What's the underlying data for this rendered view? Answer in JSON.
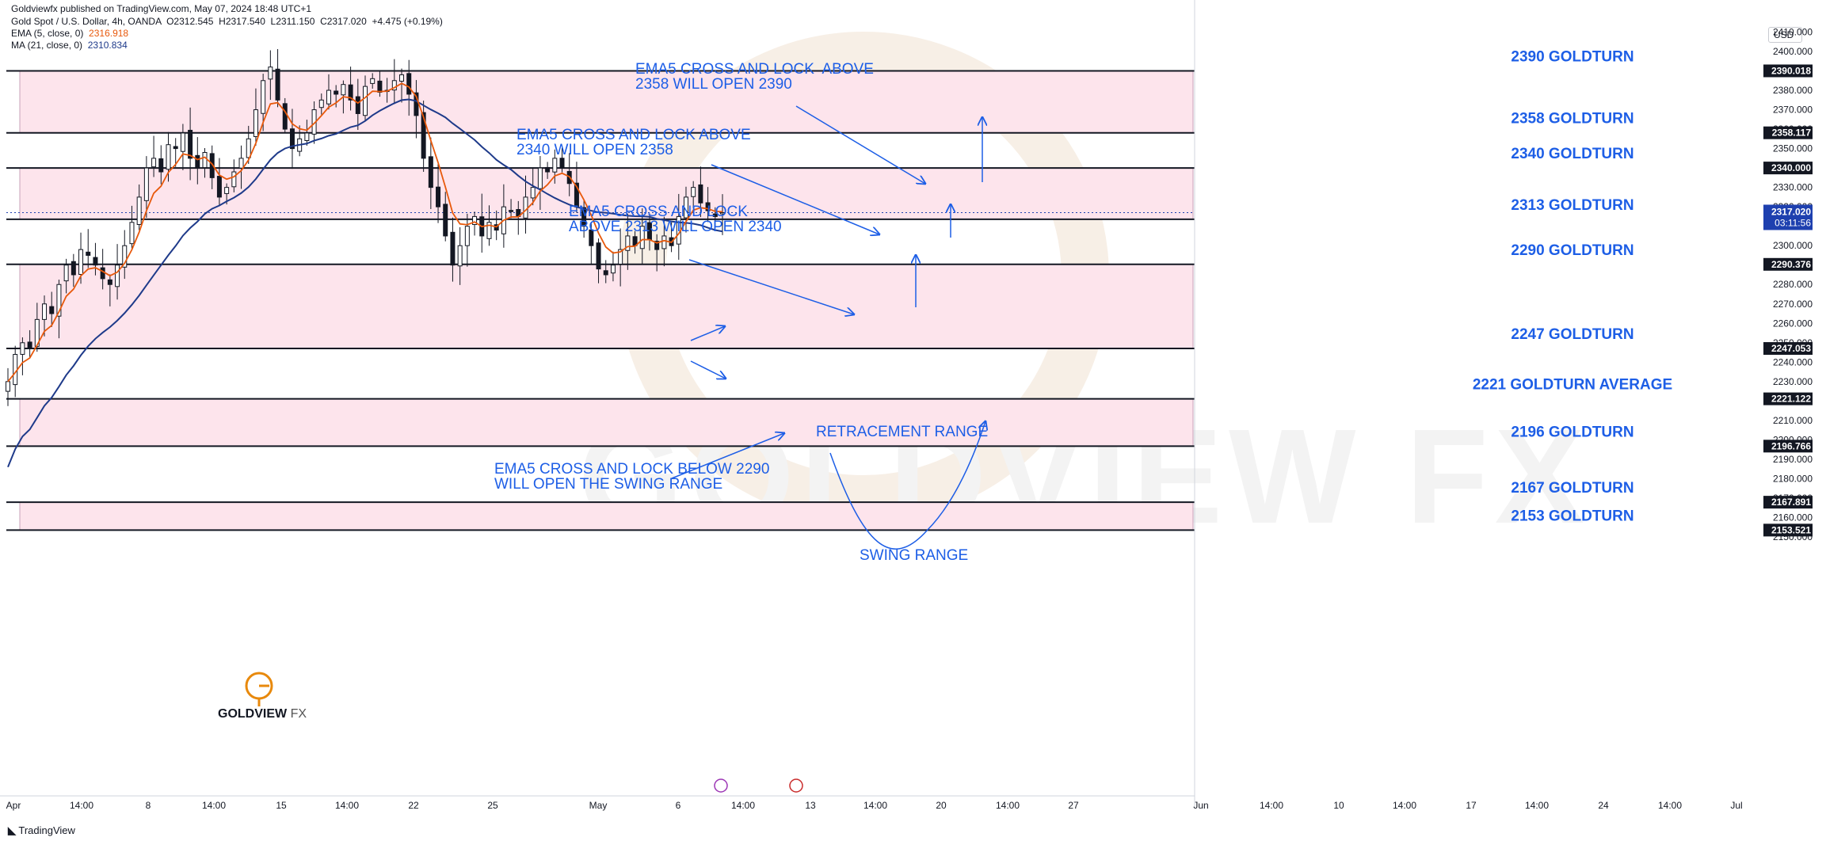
{
  "header": {
    "publisher": "Goldviewfx published on TradingView.com, May 07, 2024 18:48 UTC+1",
    "symbol": "Gold Spot / U.S. Dollar, 4h, OANDA",
    "ohlc": {
      "o": "O2312.545",
      "h": "H2317.540",
      "l": "L2311.150",
      "c": "C2317.020",
      "chg": "+4.475 (+0.19%)"
    },
    "ema_label": "EMA (5, close, 0)",
    "ema_value": "2316.918",
    "ma_label": "MA (21, close, 0)",
    "ma_value": "2310.834"
  },
  "currency_button": "USD",
  "footer": {
    "logo": "TradingView"
  },
  "watermark": "GOLDVIEW FX",
  "logo": {
    "name": "GOLDVIEW",
    "suffix": "FX"
  },
  "annotations": {
    "a2390": "EMA5 CROSS AND LOCK  ABOVE\n2358 WILL OPEN 2390",
    "a2358": "EMA5 CROSS AND LOCK ABOVE\n2340 WILL OPEN 2358",
    "a2340": "EMA5 CROSS AND LOCK\nABOVE 2313 WILL OPEN 2340",
    "a2290": "EMA5 CROSS AND LOCK BELOW 2290\nWILL OPEN THE SWING RANGE",
    "retracement": "RETRACEMENT RANGE",
    "swing": "SWING RANGE"
  },
  "colors": {
    "ema": "#e8590c",
    "ma": "#1e3a8a",
    "annotation": "#1d5ee6",
    "zone": "#fde4ec",
    "zone_border": "#c8a0b8",
    "bull": "#e8590c",
    "bear": "#c92a2a",
    "current_price_bg": "#1e40af"
  },
  "chart_data": {
    "type": "candlestick",
    "symbol": "Gold Spot / U.S. Dollar",
    "timeframe": "4h",
    "y_axis": {
      "range": [
        2145,
        2420
      ],
      "ticks": [
        2150,
        2160,
        2170,
        2180,
        2190,
        2200,
        2210,
        2220,
        2230,
        2240,
        2250,
        2260,
        2270,
        2280,
        2290,
        2300,
        2310,
        2320,
        2330,
        2340,
        2350,
        2360,
        2370,
        2380,
        2390,
        2400,
        2410
      ]
    },
    "x_axis": {
      "labels": [
        "Apr",
        "14:00",
        "8",
        "14:00",
        "15",
        "14:00",
        "22",
        "25",
        "May",
        "6",
        "14:00",
        "13",
        "14:00",
        "20",
        "14:00",
        "27",
        "Jun",
        "14:00",
        "10",
        "14:00",
        "17",
        "14:00",
        "24",
        "14:00",
        "Jul"
      ]
    },
    "levels": [
      {
        "price": 2390.018,
        "label": "2390 GOLDTURN",
        "tag": "2390.018"
      },
      {
        "price": 2358.117,
        "label": "2358 GOLDTURN",
        "tag": "2358.117"
      },
      {
        "price": 2340.0,
        "label": "2340 GOLDTURN",
        "tag": "2340.000"
      },
      {
        "price": 2313.613,
        "label": "2313 GOLDTURN",
        "tag": "2313.613"
      },
      {
        "price": 2290.376,
        "label": "2290 GOLDTURN",
        "tag": "2290.376"
      },
      {
        "price": 2247.053,
        "label": "2247 GOLDTURN",
        "tag": "2247.053"
      },
      {
        "price": 2221.122,
        "label": "2221 GOLDTURN AVERAGE",
        "tag": "2221.122"
      },
      {
        "price": 2196.766,
        "label": "2196 GOLDTURN",
        "tag": "2196.766"
      },
      {
        "price": 2167.891,
        "label": "2167 GOLDTURN",
        "tag": "2167.891"
      },
      {
        "price": 2153.521,
        "label": "2153 GOLDTURN",
        "tag": "2153.521"
      }
    ],
    "zones": [
      {
        "top": 2390.018,
        "bottom": 2358.117
      },
      {
        "top": 2340.0,
        "bottom": 2313.613
      },
      {
        "top": 2290.376,
        "bottom": 2247.053
      },
      {
        "top": 2221.122,
        "bottom": 2196.766
      },
      {
        "top": 2167.891,
        "bottom": 2153.521
      }
    ],
    "current_price": {
      "price": 2317.02,
      "label": "2317.020",
      "countdown": "03:11:56"
    },
    "candles_close": [
      2230,
      2244,
      2250,
      2247,
      2262,
      2270,
      2265,
      2280,
      2290,
      2285,
      2298,
      2295,
      2290,
      2283,
      2280,
      2290,
      2300,
      2312,
      2325,
      2340,
      2345,
      2338,
      2352,
      2350,
      2358,
      2345,
      2340,
      2348,
      2335,
      2325,
      2330,
      2338,
      2345,
      2355,
      2370,
      2385,
      2392,
      2375,
      2360,
      2350,
      2355,
      2358,
      2370,
      2375,
      2380,
      2378,
      2383,
      2375,
      2368,
      2382,
      2386,
      2379,
      2380,
      2385,
      2388,
      2378,
      2367,
      2345,
      2330,
      2320,
      2305,
      2290,
      2300,
      2310,
      2315,
      2305,
      2312,
      2308,
      2320,
      2318,
      2315,
      2325,
      2330,
      2340,
      2338,
      2345,
      2340,
      2332,
      2320,
      2310,
      2300,
      2288,
      2285,
      2290,
      2298,
      2305,
      2300,
      2310,
      2303,
      2298,
      2305,
      2300,
      2315,
      2325,
      2330,
      2322,
      2318,
      2315,
      2317
    ],
    "ema5_value": 2316.918,
    "ma21_value": 2310.834
  }
}
